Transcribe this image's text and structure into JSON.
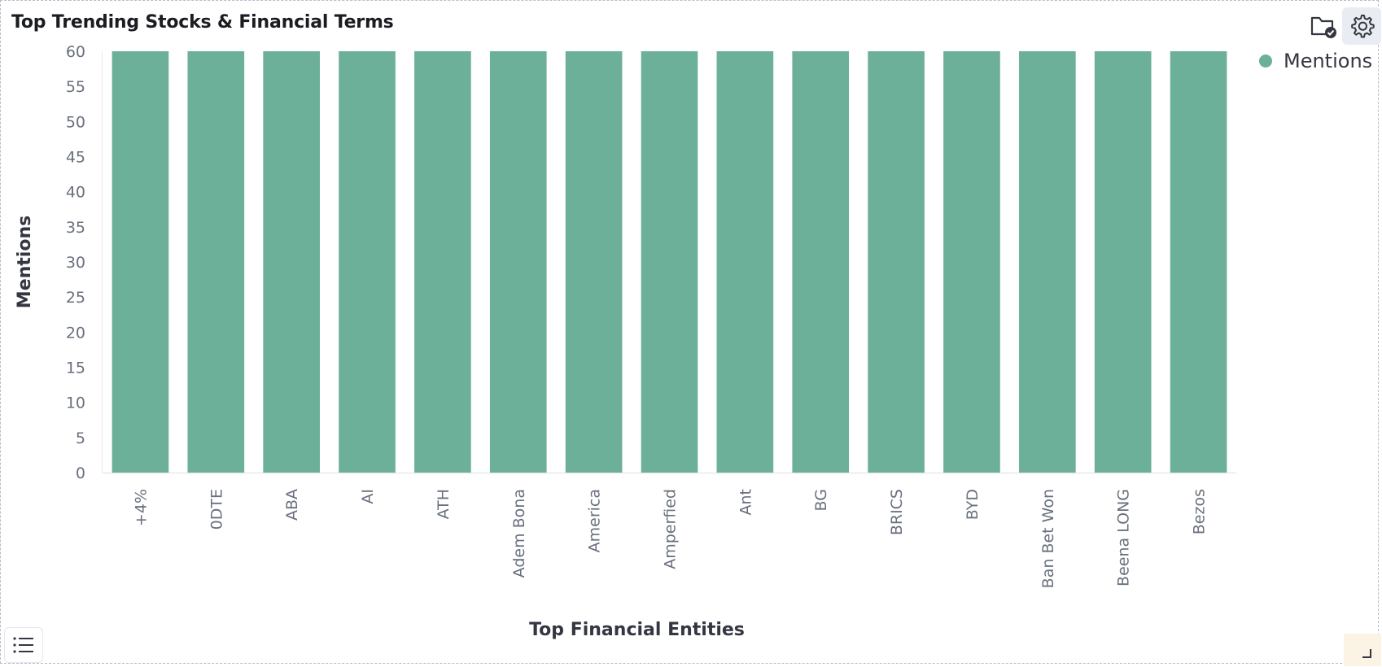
{
  "panel": {
    "title": "Top Trending Stocks & Financial Terms",
    "icons": {
      "folder": "folder-check-icon",
      "settings": "gear-icon",
      "legend_toggle": "list-icon",
      "resize": "resize-corner-icon"
    }
  },
  "colors": {
    "bar": "#6db09a",
    "gridline": "#e6e9ef",
    "axis_text": "#69707d"
  },
  "chart_data": {
    "type": "bar",
    "xlabel": "Top Financial Entities",
    "ylabel": "Mentions",
    "ylim": [
      0,
      60
    ],
    "yticks": [
      0,
      5,
      10,
      15,
      20,
      25,
      30,
      35,
      40,
      45,
      50,
      55,
      60
    ],
    "categories": [
      "+4%",
      "0DTE",
      "ABA",
      "AI",
      "ATH",
      "Adem Bona",
      "America",
      "Amperfied",
      "Ant",
      "BG",
      "BRICS",
      "BYD",
      "Ban Bet Won",
      "Beena LONG",
      "Bezos"
    ],
    "series": [
      {
        "name": "Mentions",
        "values": [
          60,
          60,
          60,
          60,
          60,
          60,
          60,
          60,
          60,
          60,
          60,
          60,
          60,
          60,
          60
        ]
      }
    ],
    "legend": "top-right",
    "grid": false
  }
}
